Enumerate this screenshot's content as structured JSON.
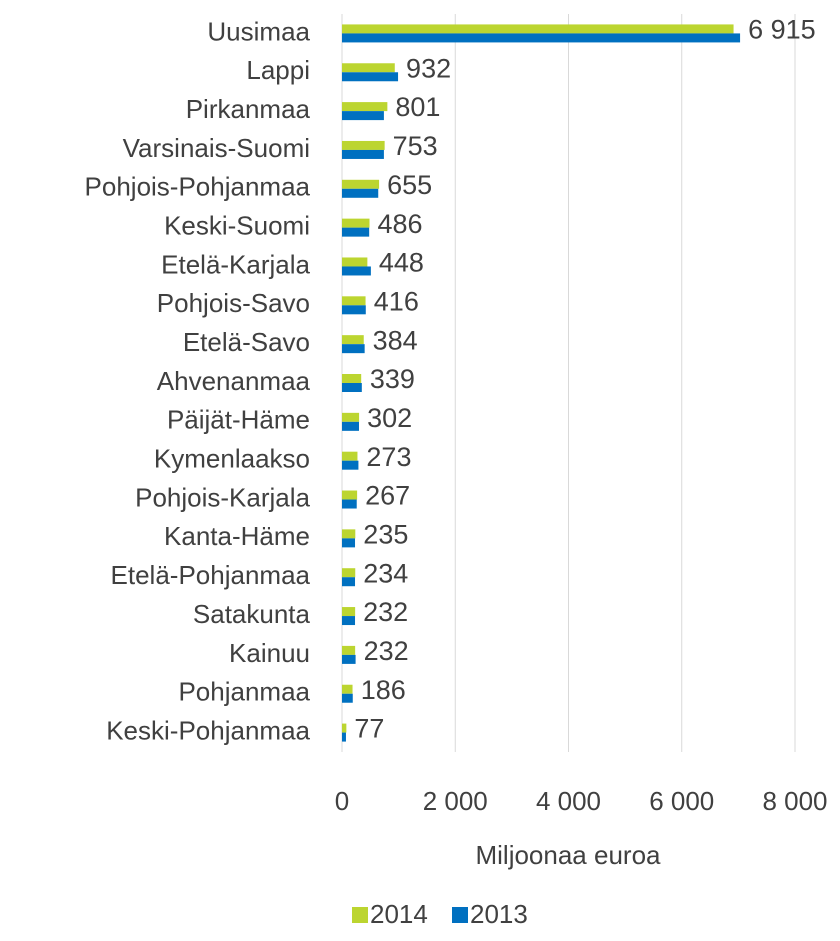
{
  "chart_data": {
    "type": "bar",
    "orientation": "horizontal",
    "categories": [
      "Uusimaa",
      "Lappi",
      "Pirkanmaa",
      "Varsinais-Suomi",
      "Pohjois-Pohjanmaa",
      "Keski-Suomi",
      "Etelä-Karjala",
      "Pohjois-Savo",
      "Etelä-Savo",
      "Ahvenanmaa",
      "Päijät-Häme",
      "Kymenlaakso",
      "Pohjois-Karjala",
      "Kanta-Häme",
      "Etelä-Pohjanmaa",
      "Satakunta",
      "Kainuu",
      "Pohjanmaa",
      "Keski-Pohjanmaa"
    ],
    "series": [
      {
        "name": "2014",
        "color": "#bcd530",
        "values": [
          6915,
          932,
          801,
          753,
          655,
          486,
          448,
          416,
          384,
          339,
          302,
          273,
          267,
          235,
          234,
          232,
          232,
          186,
          77
        ],
        "value_labels": [
          "6 915",
          "932",
          "801",
          "753",
          "655",
          "486",
          "448",
          "416",
          "384",
          "339",
          "302",
          "273",
          "267",
          "235",
          "234",
          "232",
          "232",
          "186",
          "77"
        ]
      },
      {
        "name": "2013",
        "color": "#0070c0",
        "values": [
          7030,
          990,
          740,
          740,
          640,
          480,
          510,
          420,
          400,
          350,
          300,
          290,
          260,
          230,
          230,
          230,
          240,
          190,
          70
        ]
      }
    ],
    "xlabel": "Miljoonaa euroa",
    "xlim": [
      0,
      8000
    ],
    "xticks": [
      0,
      {
        "value": 2000,
        "label": "2 000"
      },
      {
        "value": 4000,
        "label": "4 000"
      },
      {
        "value": 6000,
        "label": "6 000"
      },
      {
        "value": 8000,
        "label": "8 000"
      }
    ],
    "grid": true,
    "legend": "bottom"
  }
}
